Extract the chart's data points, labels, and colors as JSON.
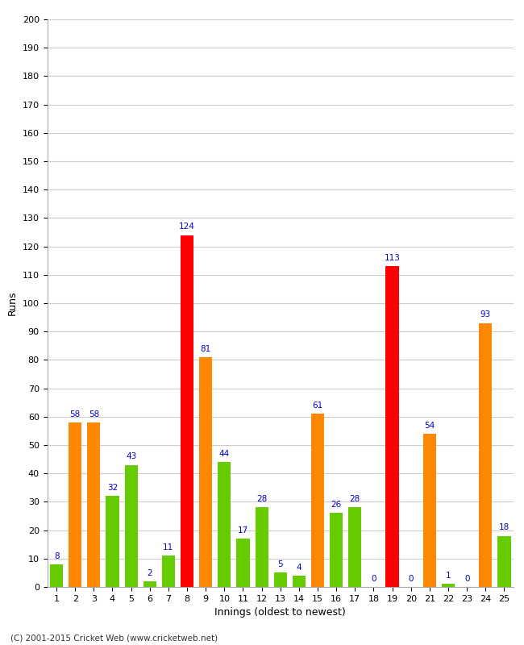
{
  "xlabel": "Innings (oldest to newest)",
  "ylabel": "Runs",
  "footer": "(C) 2001-2015 Cricket Web (www.cricketweb.net)",
  "innings": [
    1,
    2,
    3,
    4,
    5,
    6,
    7,
    8,
    9,
    10,
    11,
    12,
    13,
    14,
    15,
    16,
    17,
    18,
    19,
    20,
    21,
    22,
    23,
    24,
    25
  ],
  "values": [
    8,
    58,
    58,
    32,
    43,
    2,
    11,
    124,
    81,
    44,
    17,
    28,
    5,
    4,
    61,
    26,
    28,
    0,
    113,
    0,
    54,
    1,
    0,
    93,
    18
  ],
  "colors": [
    "#66cc00",
    "#ff8800",
    "#ff8800",
    "#66cc00",
    "#66cc00",
    "#66cc00",
    "#66cc00",
    "#ff0000",
    "#ff8800",
    "#66cc00",
    "#66cc00",
    "#66cc00",
    "#66cc00",
    "#66cc00",
    "#ff8800",
    "#66cc00",
    "#66cc00",
    "#66cc00",
    "#ff0000",
    "#ff8800",
    "#ff8800",
    "#66cc00",
    "#ff8800",
    "#ff8800",
    "#66cc00"
  ],
  "ylim": [
    0,
    200
  ],
  "yticks": [
    0,
    10,
    20,
    30,
    40,
    50,
    60,
    70,
    80,
    90,
    100,
    110,
    120,
    130,
    140,
    150,
    160,
    170,
    180,
    190,
    200
  ],
  "label_color": "#0000cc",
  "background_color": "#ffffff",
  "grid_color": "#cccccc",
  "bar_width": 0.7,
  "axis_label_fontsize": 9,
  "tick_fontsize": 8,
  "value_label_fontsize": 7.5
}
